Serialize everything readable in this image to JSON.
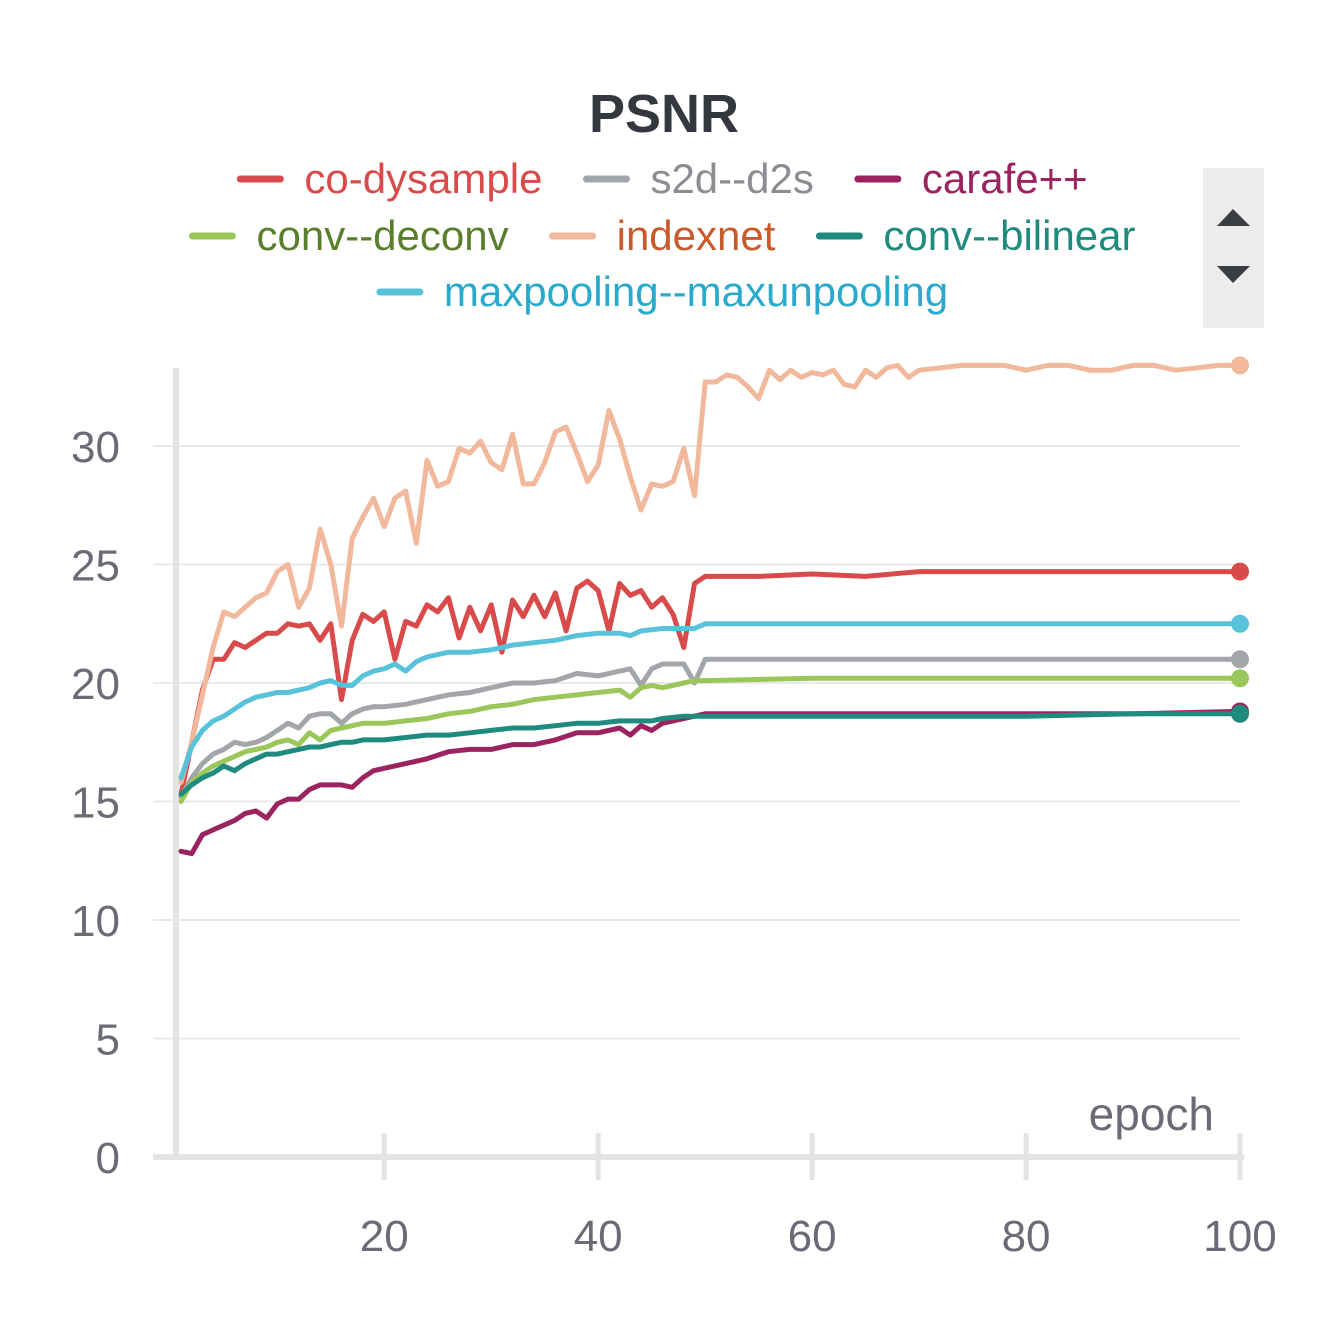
{
  "colors": {
    "axis": "#e4e4e4",
    "grid": "#e9e9e9",
    "tick_text": "#6b6b75",
    "title": "#34373d"
  },
  "legend_controls": {
    "scroll_up_icon": "triangle-up-icon",
    "scroll_down_icon": "triangle-down-icon"
  },
  "chart_data": {
    "type": "line",
    "title": "PSNR",
    "xlabel": "epoch",
    "ylabel": "",
    "xlim": [
      1,
      100
    ],
    "ylim": [
      0,
      34
    ],
    "xticks": [
      20,
      40,
      60,
      80,
      100
    ],
    "xtick_labels": [
      "20",
      "40",
      "60",
      "80",
      "100"
    ],
    "yticks": [
      0,
      5,
      10,
      15,
      20,
      25,
      30
    ],
    "ytick_labels": [
      "0",
      "5",
      "10",
      "15",
      "20",
      "25",
      "30"
    ],
    "grid": "horizontal",
    "legend_position": "top",
    "series": [
      {
        "name": "co-dysample",
        "color": "#d94a4a",
        "label_color": "#d94a4a",
        "x": [
          1,
          2,
          3,
          4,
          5,
          6,
          7,
          8,
          9,
          10,
          11,
          12,
          13,
          14,
          15,
          16,
          17,
          18,
          19,
          20,
          21,
          22,
          23,
          24,
          25,
          26,
          27,
          28,
          29,
          30,
          31,
          32,
          33,
          34,
          35,
          36,
          37,
          38,
          39,
          40,
          41,
          42,
          43,
          44,
          45,
          46,
          47,
          48,
          49,
          50,
          55,
          60,
          65,
          70,
          75,
          80,
          85,
          90,
          95,
          100
        ],
        "y": [
          15.3,
          17.5,
          19.7,
          21.0,
          21.0,
          21.7,
          21.5,
          21.8,
          22.1,
          22.1,
          22.5,
          22.4,
          22.5,
          21.8,
          22.5,
          19.3,
          21.8,
          22.9,
          22.6,
          23.0,
          21.0,
          22.6,
          22.4,
          23.3,
          23.0,
          23.6,
          21.9,
          23.2,
          22.2,
          23.3,
          21.3,
          23.5,
          22.8,
          23.7,
          22.8,
          23.8,
          22.2,
          24.0,
          24.3,
          23.9,
          22.2,
          24.2,
          23.7,
          23.9,
          23.2,
          23.6,
          22.9,
          21.5,
          24.2,
          24.5,
          24.5,
          24.6,
          24.5,
          24.7,
          24.7,
          24.7,
          24.7,
          24.7,
          24.7,
          24.7
        ]
      },
      {
        "name": "s2d--d2s",
        "color": "#a2a5a9",
        "label_color": "#8a8d92",
        "x": [
          1,
          2,
          3,
          4,
          5,
          6,
          7,
          8,
          9,
          10,
          11,
          12,
          13,
          14,
          15,
          16,
          17,
          18,
          19,
          20,
          22,
          24,
          26,
          28,
          30,
          32,
          34,
          36,
          38,
          40,
          42,
          43,
          44,
          45,
          46,
          48,
          49,
          50,
          60,
          70,
          80,
          90,
          100
        ],
        "y": [
          15.2,
          16.0,
          16.6,
          17.0,
          17.2,
          17.5,
          17.4,
          17.5,
          17.7,
          18.0,
          18.3,
          18.1,
          18.6,
          18.7,
          18.7,
          18.3,
          18.7,
          18.9,
          19.0,
          19.0,
          19.1,
          19.3,
          19.5,
          19.6,
          19.8,
          20.0,
          20.0,
          20.1,
          20.4,
          20.3,
          20.5,
          20.6,
          19.9,
          20.6,
          20.8,
          20.8,
          20.0,
          21.0,
          21.0,
          21.0,
          21.0,
          21.0,
          21.0
        ]
      },
      {
        "name": "carafe++",
        "color": "#9b2360",
        "label_color": "#9b2360",
        "x": [
          1,
          2,
          3,
          4,
          5,
          6,
          7,
          8,
          9,
          10,
          11,
          12,
          13,
          14,
          15,
          16,
          17,
          18,
          19,
          20,
          22,
          24,
          26,
          28,
          30,
          32,
          34,
          36,
          38,
          40,
          42,
          43,
          44,
          45,
          46,
          48,
          50,
          60,
          70,
          80,
          90,
          100
        ],
        "y": [
          12.9,
          12.8,
          13.6,
          13.8,
          14.0,
          14.2,
          14.5,
          14.6,
          14.3,
          14.9,
          15.1,
          15.1,
          15.5,
          15.7,
          15.7,
          15.7,
          15.6,
          16.0,
          16.3,
          16.4,
          16.6,
          16.8,
          17.1,
          17.2,
          17.2,
          17.4,
          17.4,
          17.6,
          17.9,
          17.9,
          18.1,
          17.8,
          18.2,
          18.0,
          18.3,
          18.5,
          18.7,
          18.7,
          18.7,
          18.7,
          18.7,
          18.8
        ]
      },
      {
        "name": "conv--deconv",
        "color": "#9bc65a",
        "label_color": "#5a7f2c",
        "x": [
          1,
          2,
          3,
          4,
          5,
          6,
          7,
          8,
          9,
          10,
          11,
          12,
          13,
          14,
          15,
          16,
          17,
          18,
          19,
          20,
          22,
          24,
          26,
          28,
          30,
          32,
          34,
          36,
          38,
          40,
          42,
          43,
          44,
          45,
          46,
          48,
          49,
          50,
          60,
          70,
          80,
          90,
          100
        ],
        "y": [
          15.0,
          15.8,
          16.2,
          16.5,
          16.7,
          16.9,
          17.1,
          17.2,
          17.3,
          17.5,
          17.6,
          17.4,
          17.9,
          17.6,
          18.0,
          18.1,
          18.2,
          18.3,
          18.3,
          18.3,
          18.4,
          18.5,
          18.7,
          18.8,
          19.0,
          19.1,
          19.3,
          19.4,
          19.5,
          19.6,
          19.7,
          19.4,
          19.8,
          19.9,
          19.8,
          20.0,
          20.1,
          20.1,
          20.2,
          20.2,
          20.2,
          20.2,
          20.2
        ]
      },
      {
        "name": "indexnet",
        "color": "#f1b89c",
        "label_color": "#c85a2c",
        "x": [
          1,
          2,
          3,
          4,
          5,
          6,
          7,
          8,
          9,
          10,
          11,
          12,
          13,
          14,
          15,
          16,
          17,
          18,
          19,
          20,
          21,
          22,
          23,
          24,
          25,
          26,
          27,
          28,
          29,
          30,
          31,
          32,
          33,
          34,
          35,
          36,
          37,
          38,
          39,
          40,
          41,
          42,
          43,
          44,
          45,
          46,
          47,
          48,
          49,
          50,
          51,
          52,
          53,
          54,
          55,
          56,
          57,
          58,
          59,
          60,
          61,
          62,
          63,
          64,
          65,
          66,
          67,
          68,
          69,
          70,
          72,
          74,
          76,
          78,
          80,
          82,
          84,
          86,
          88,
          90,
          92,
          94,
          96,
          98,
          100
        ],
        "y": [
          15.8,
          17.5,
          19.5,
          21.5,
          23.0,
          22.8,
          23.2,
          23.6,
          23.8,
          24.7,
          25.0,
          23.2,
          24.0,
          26.5,
          25.0,
          22.4,
          26.1,
          27.0,
          27.8,
          26.6,
          27.8,
          28.1,
          25.9,
          29.4,
          28.3,
          28.5,
          29.9,
          29.7,
          30.2,
          29.3,
          29.0,
          30.5,
          28.4,
          28.4,
          29.3,
          30.6,
          30.8,
          29.7,
          28.5,
          29.2,
          31.5,
          30.3,
          28.7,
          27.3,
          28.4,
          28.3,
          28.5,
          29.9,
          27.9,
          32.7,
          32.7,
          33.0,
          32.9,
          32.5,
          32.0,
          33.2,
          32.8,
          33.2,
          32.9,
          33.1,
          33.0,
          33.2,
          32.6,
          32.5,
          33.2,
          32.9,
          33.3,
          33.4,
          32.9,
          33.2,
          33.3,
          33.4,
          33.4,
          33.4,
          33.2,
          33.4,
          33.4,
          33.2,
          33.2,
          33.4,
          33.4,
          33.2,
          33.3,
          33.4,
          33.4
        ]
      },
      {
        "name": "conv--bilinear",
        "color": "#1f8a7e",
        "label_color": "#1f8a7e",
        "x": [
          1,
          2,
          3,
          4,
          5,
          6,
          7,
          8,
          9,
          10,
          11,
          12,
          13,
          14,
          15,
          16,
          17,
          18,
          19,
          20,
          22,
          24,
          26,
          28,
          30,
          32,
          34,
          36,
          38,
          40,
          42,
          43,
          44,
          45,
          46,
          48,
          50,
          60,
          70,
          80,
          90,
          100
        ],
        "y": [
          15.3,
          15.7,
          16.0,
          16.2,
          16.5,
          16.3,
          16.6,
          16.8,
          17.0,
          17.0,
          17.1,
          17.2,
          17.3,
          17.3,
          17.4,
          17.5,
          17.5,
          17.6,
          17.6,
          17.6,
          17.7,
          17.8,
          17.8,
          17.9,
          18.0,
          18.1,
          18.1,
          18.2,
          18.3,
          18.3,
          18.4,
          18.4,
          18.4,
          18.4,
          18.5,
          18.6,
          18.6,
          18.6,
          18.6,
          18.6,
          18.7,
          18.7
        ]
      },
      {
        "name": "maxpooling--maxunpooling",
        "color": "#59c2db",
        "label_color": "#29a9cc",
        "x": [
          1,
          2,
          3,
          4,
          5,
          6,
          7,
          8,
          9,
          10,
          11,
          12,
          13,
          14,
          15,
          16,
          17,
          18,
          19,
          20,
          21,
          22,
          23,
          24,
          26,
          28,
          30,
          32,
          34,
          36,
          38,
          40,
          42,
          43,
          44,
          46,
          48,
          49,
          50,
          60,
          70,
          80,
          90,
          100
        ],
        "y": [
          16.0,
          17.3,
          18.0,
          18.4,
          18.6,
          18.9,
          19.2,
          19.4,
          19.5,
          19.6,
          19.6,
          19.7,
          19.8,
          20.0,
          20.1,
          19.9,
          19.9,
          20.3,
          20.5,
          20.6,
          20.8,
          20.5,
          20.9,
          21.1,
          21.3,
          21.3,
          21.4,
          21.6,
          21.7,
          21.8,
          22.0,
          22.1,
          22.1,
          22.0,
          22.2,
          22.3,
          22.3,
          22.3,
          22.5,
          22.5,
          22.5,
          22.5,
          22.5,
          22.5
        ]
      }
    ]
  }
}
